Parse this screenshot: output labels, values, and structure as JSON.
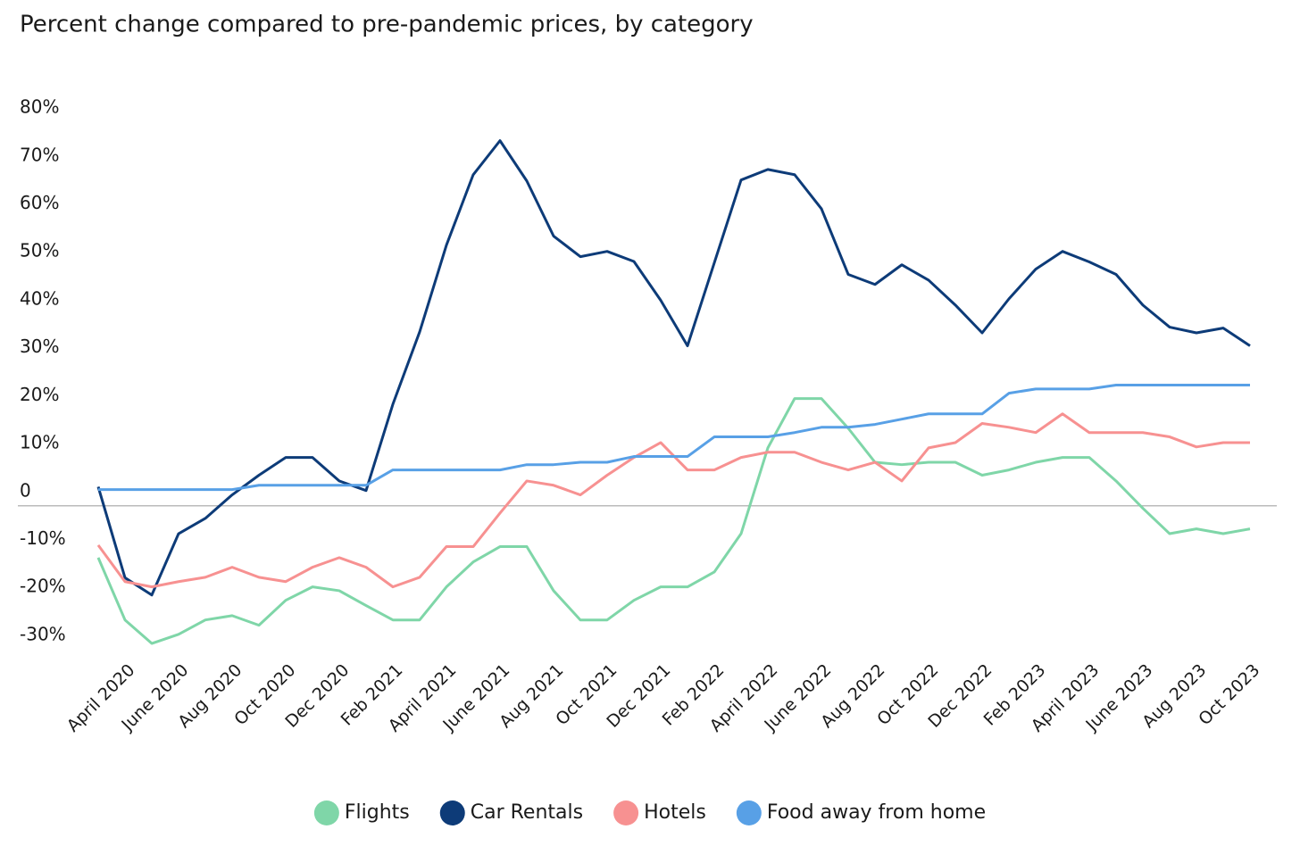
{
  "chart_data": {
    "type": "line",
    "title": "Percent change compared to pre-pandemic prices, by category",
    "categories": [
      null,
      "April 2020",
      null,
      "June 2020",
      null,
      "Aug 2020",
      null,
      "Oct 2020",
      null,
      "Dec 2020",
      null,
      "Feb 2021",
      null,
      "April 2021",
      null,
      "June 2021",
      null,
      "Aug 2021",
      null,
      "Oct 2021",
      null,
      "Dec 2021",
      null,
      "Feb 2022",
      null,
      "April 2022",
      null,
      "June 2022",
      null,
      "Aug 2022",
      null,
      "Oct 2022",
      null,
      "Dec 2022",
      null,
      "Feb 2023",
      null,
      "April 2023",
      null,
      "June 2023",
      null,
      "Aug 2023",
      null,
      "Oct 2023"
    ],
    "series": [
      {
        "name": "Flights",
        "color": "#7fd6a8",
        "values": [
          -13.8,
          -26.8,
          -31.7,
          -29.8,
          -26.8,
          -25.9,
          -27.9,
          -22.7,
          -19.9,
          -20.7,
          -23.8,
          -26.8,
          -26.8,
          -19.9,
          -14.7,
          -11.5,
          -11.5,
          -20.7,
          -26.8,
          -26.8,
          -22.7,
          -19.9,
          -19.9,
          -16.8,
          -8.8,
          9.1,
          19.4,
          19.4,
          13.2,
          6.1,
          5.6,
          6.1,
          6.1,
          3.4,
          4.5,
          6.1,
          7.1,
          7.1,
          2.2,
          -3.5,
          -8.8,
          -7.8,
          -8.8,
          -7.8
        ]
      },
      {
        "name": "Car Rentals",
        "color": "#0d3b78",
        "values": [
          1,
          -18,
          -21.6,
          -8.8,
          -5.6,
          -0.7,
          3.4,
          7.1,
          7.1,
          2.2,
          0.2,
          18.2,
          33.3,
          51.4,
          66.1,
          73.2,
          64.8,
          53.3,
          49,
          50.1,
          48,
          39.9,
          30.4,
          47.7,
          65,
          67.2,
          66.1,
          59,
          45.3,
          43.2,
          47.3,
          44.1,
          38.9,
          33.1,
          40.2,
          46.4,
          50.1,
          47.9,
          45.3,
          38.9,
          34.3,
          33.1,
          34.1,
          30.4
        ]
      },
      {
        "name": "Hotels",
        "color": "#f79191",
        "values": [
          -11.2,
          -18.8,
          -19.9,
          -18.8,
          -17.9,
          -15.8,
          -17.9,
          -18.8,
          -15.8,
          -13.8,
          -15.8,
          -19.9,
          -17.9,
          -11.5,
          -11.5,
          -4.5,
          2.2,
          1.3,
          -0.7,
          3.4,
          7.1,
          10.2,
          4.5,
          4.5,
          7.1,
          8.2,
          8.2,
          6.1,
          4.5,
          6.1,
          2.2,
          9.1,
          10.2,
          14.2,
          13.4,
          12.3,
          16.2,
          12.3,
          12.3,
          12.3,
          11.4,
          9.3,
          10.2,
          10.2
        ]
      },
      {
        "name": "Food away from home",
        "color": "#58a0e6",
        "values": [
          0.4,
          0.4,
          0.4,
          0.4,
          0.4,
          0.4,
          1.3,
          1.3,
          1.3,
          1.3,
          1.3,
          4.5,
          4.5,
          4.5,
          4.5,
          4.5,
          5.6,
          5.6,
          6.1,
          6.1,
          7.3,
          7.3,
          7.3,
          11.4,
          11.4,
          11.4,
          12.3,
          13.4,
          13.4,
          14,
          15.1,
          16.2,
          16.2,
          16.2,
          20.5,
          21.4,
          21.4,
          21.4,
          22.2,
          22.2,
          22.2,
          22.2,
          22.2,
          22.2
        ]
      }
    ],
    "ylim": [
      -33,
      83
    ],
    "yticks": [
      {
        "value": 80,
        "label": "80%"
      },
      {
        "value": 70,
        "label": "70%"
      },
      {
        "value": 60,
        "label": "60%"
      },
      {
        "value": 50,
        "label": "50%"
      },
      {
        "value": 40,
        "label": "40%"
      },
      {
        "value": 30,
        "label": "30%"
      },
      {
        "value": 20,
        "label": "20%"
      },
      {
        "value": 10,
        "label": "10%"
      },
      0,
      {
        "value": -10,
        "label": "-10%"
      },
      {
        "value": -20,
        "label": "-20%"
      },
      {
        "value": -30,
        "label": "-30%"
      }
    ],
    "grid": false,
    "legend": "bottom"
  }
}
